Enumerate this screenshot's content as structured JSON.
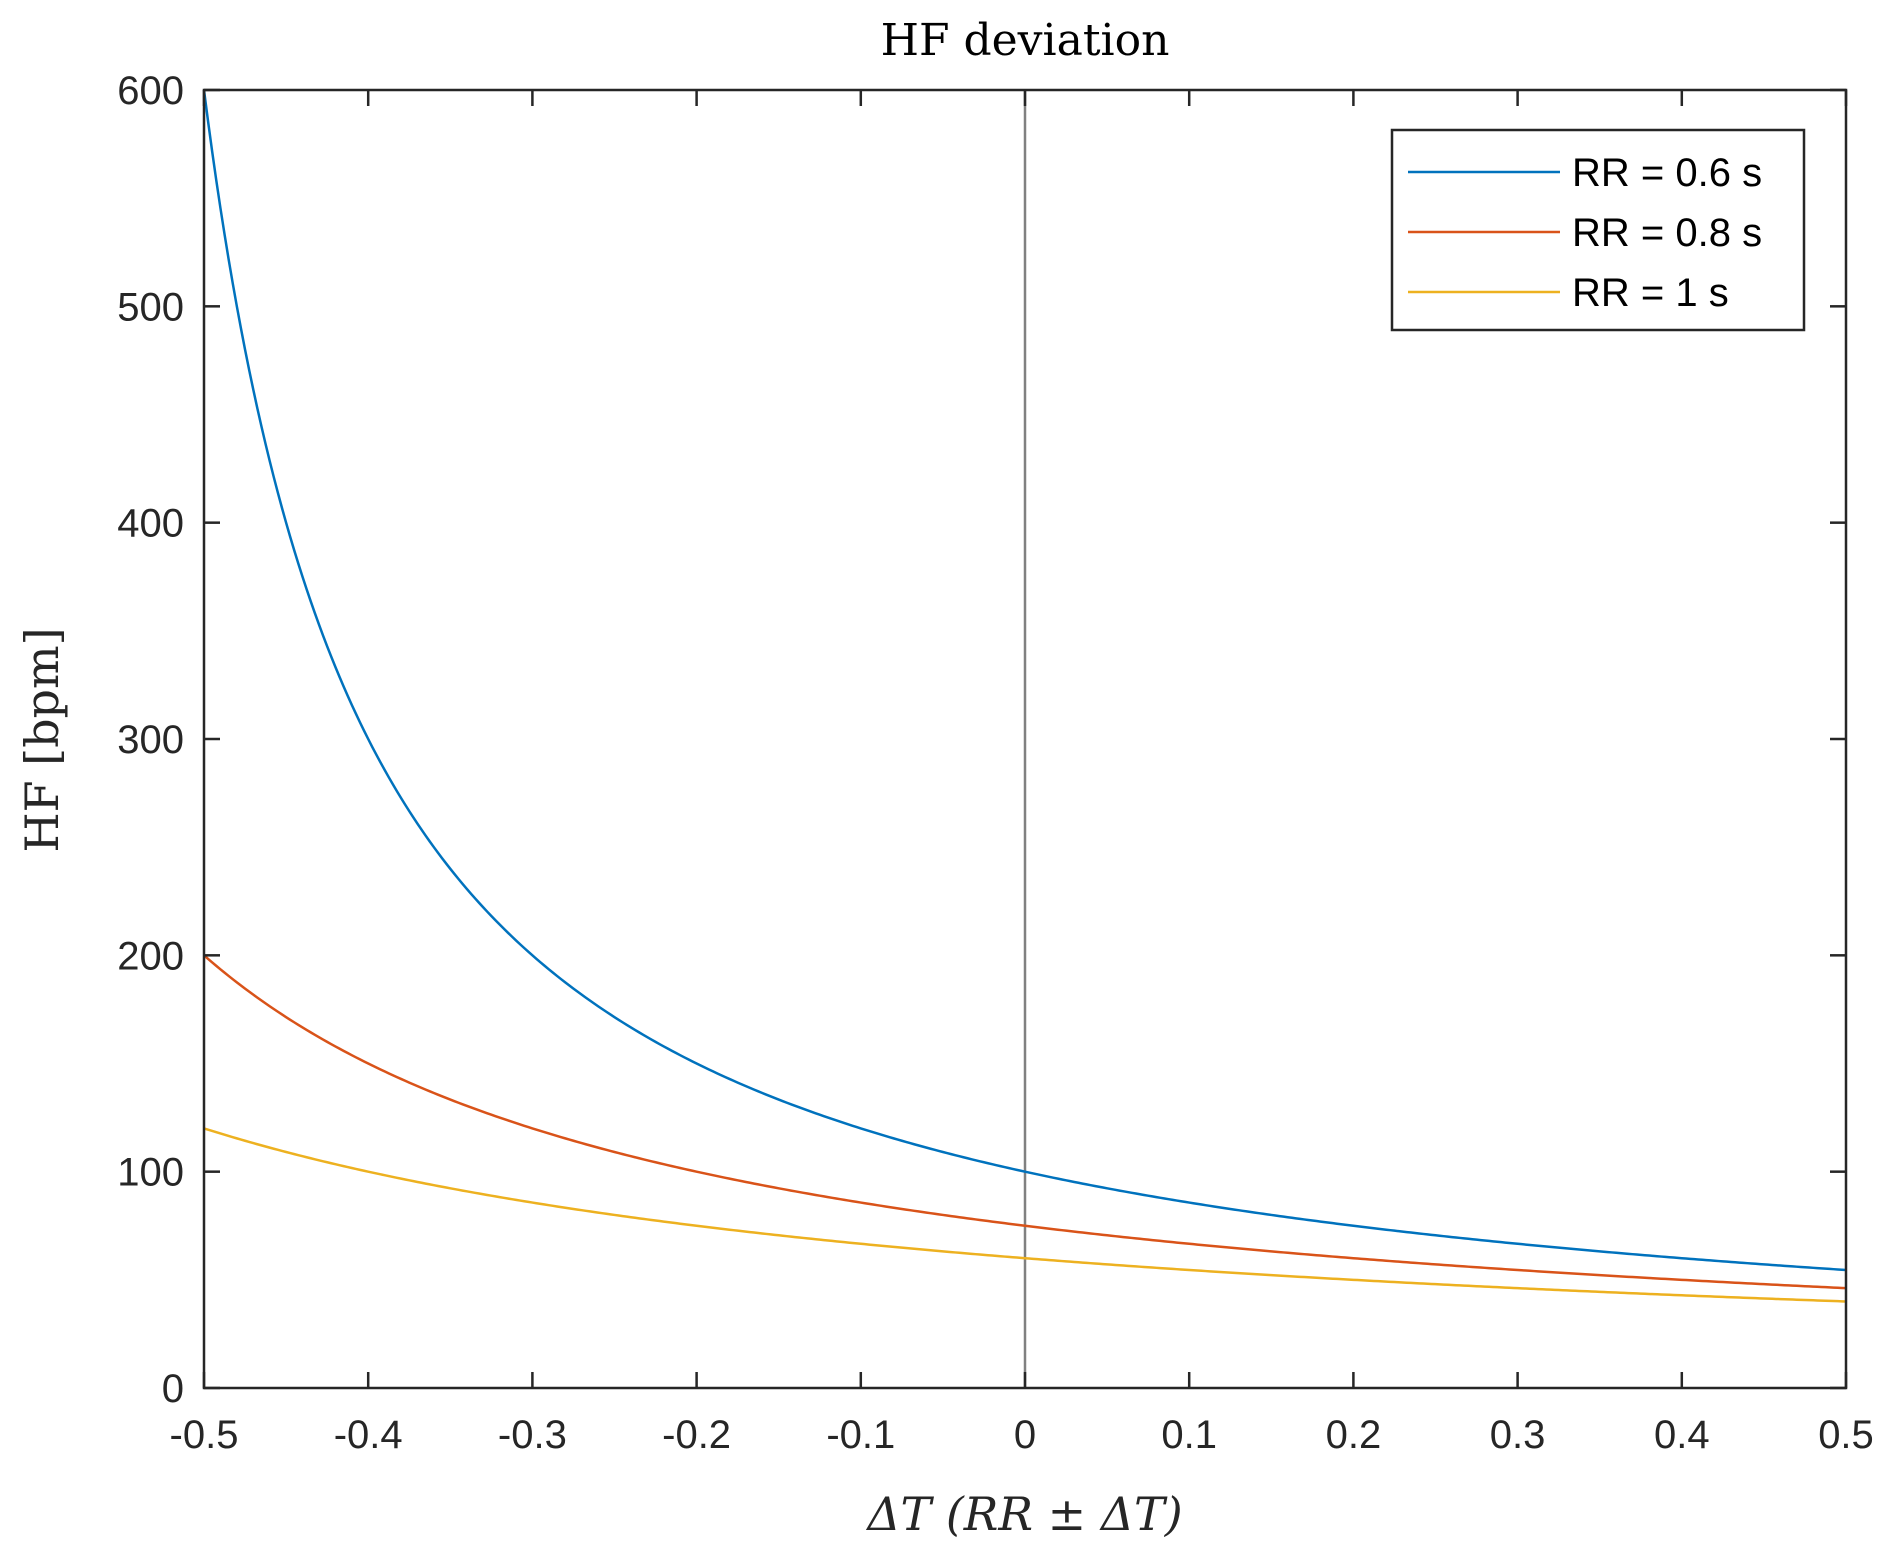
{
  "chart_data": {
    "type": "line",
    "title": "HF deviation",
    "xlabel": "ΔT (RR ± ΔT)",
    "ylabel": "HF [bpm]",
    "xlim": [
      -0.5,
      0.5
    ],
    "ylim": [
      0,
      600
    ],
    "xticks": [
      "-0.5",
      "-0.4",
      "-0.3",
      "-0.2",
      "-0.1",
      "0",
      "0.1",
      "0.2",
      "0.3",
      "0.4",
      "0.5"
    ],
    "yticks": [
      "0",
      "100",
      "200",
      "300",
      "400",
      "500",
      "600"
    ],
    "grid": false,
    "legend_position": "top-right",
    "vertical_reference_line": {
      "x": 0,
      "color": "#808080"
    },
    "x": [
      -0.5,
      -0.45,
      -0.4,
      -0.35,
      -0.3,
      -0.25,
      -0.2,
      -0.15,
      -0.1,
      -0.05,
      0,
      0.05,
      0.1,
      0.15,
      0.2,
      0.25,
      0.3,
      0.35,
      0.4,
      0.45,
      0.5
    ],
    "series": [
      {
        "name": "RR = 0.6 s",
        "color": "#0072BD",
        "values": [
          600,
          400,
          300,
          240,
          200,
          171.4,
          150,
          133.3,
          120,
          109.1,
          100,
          92.3,
          85.7,
          80,
          75,
          70.6,
          66.7,
          63.2,
          60,
          57.1,
          54.5
        ]
      },
      {
        "name": "RR = 0.8 s",
        "color": "#D95319",
        "values": [
          200,
          171.4,
          150,
          133.3,
          120,
          109.1,
          100,
          92.3,
          85.7,
          80,
          75,
          70.6,
          66.7,
          63.2,
          60,
          57.1,
          54.5,
          52.2,
          50,
          48,
          46.2
        ]
      },
      {
        "name": "RR = 1 s",
        "color": "#EDB120",
        "values": [
          120,
          109.1,
          100,
          92.3,
          85.7,
          80,
          75,
          70.6,
          66.7,
          63.2,
          60,
          57.1,
          54.5,
          52.2,
          50,
          48,
          46.2,
          44.4,
          42.9,
          41.4,
          40
        ]
      }
    ]
  }
}
